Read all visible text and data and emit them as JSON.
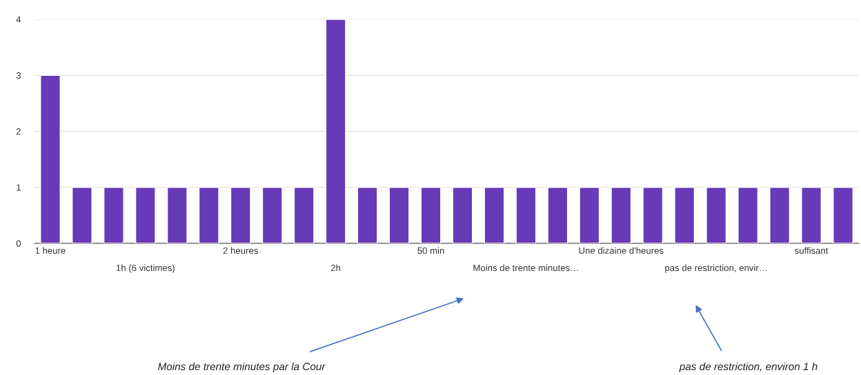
{
  "chart_data": {
    "type": "bar",
    "categories": [
      "1 heure",
      null,
      null,
      "1h (6 victimes)",
      null,
      null,
      "2 heures",
      null,
      null,
      "2h",
      null,
      null,
      "50 min",
      null,
      null,
      "Moins de trente minutes…",
      null,
      null,
      "Une dizaine d'heures",
      null,
      null,
      "pas de restriction, envir…",
      null,
      null,
      "suffisant",
      null
    ],
    "values": [
      3,
      1,
      1,
      1,
      1,
      1,
      1,
      1,
      1,
      4,
      1,
      1,
      1,
      1,
      1,
      1,
      1,
      1,
      1,
      1,
      1,
      1,
      1,
      1,
      1,
      1
    ],
    "color": "#673ab7",
    "ylim": [
      0,
      4
    ],
    "yticks": [
      0,
      1,
      2,
      3,
      4
    ],
    "grid": "y",
    "legend": false,
    "annotations": [
      "Moins de trente minutes par la Cour",
      "pas de restriction, environ 1 h"
    ]
  }
}
